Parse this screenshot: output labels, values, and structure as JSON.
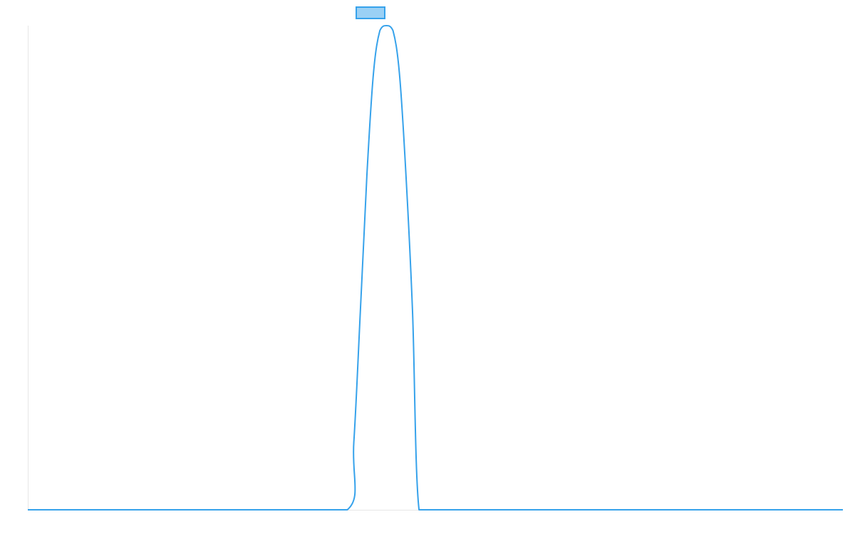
{
  "chart_data": {
    "type": "line",
    "title": "",
    "xlabel": "",
    "ylabel": "",
    "grid": false,
    "legend": {
      "position": "top",
      "entries": [
        {
          "name": "",
          "color": "#36a2eb",
          "fill": "#9ad0f5"
        }
      ]
    },
    "xlim": [
      0,
      100
    ],
    "ylim": [
      0,
      1
    ],
    "series": [
      {
        "name": "",
        "color": "#36a2eb",
        "x": [
          0,
          10,
          20,
          30,
          39.2,
          40.0,
          40.8,
          41.6,
          42.4,
          43.2,
          44.0,
          44.8,
          45.6,
          46.4,
          47.2,
          48.0,
          50,
          60,
          70,
          80,
          90,
          100
        ],
        "y": [
          0,
          0,
          0,
          0,
          0,
          0.14,
          0.41,
          0.69,
          0.9,
          0.99,
          1.0,
          0.99,
          0.9,
          0.69,
          0.41,
          0.0,
          0,
          0,
          0,
          0,
          0,
          0
        ]
      }
    ]
  }
}
